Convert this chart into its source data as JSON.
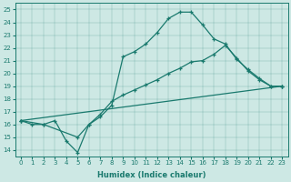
{
  "xlabel": "Humidex (Indice chaleur)",
  "xlim": [
    -0.5,
    23.5
  ],
  "ylim": [
    13.5,
    25.5
  ],
  "xticks": [
    0,
    1,
    2,
    3,
    4,
    5,
    6,
    7,
    8,
    9,
    10,
    11,
    12,
    13,
    14,
    15,
    16,
    17,
    18,
    19,
    20,
    21,
    22,
    23
  ],
  "yticks": [
    14,
    15,
    16,
    17,
    18,
    19,
    20,
    21,
    22,
    23,
    24,
    25
  ],
  "line_color": "#1a7a6e",
  "bg_color": "#cde8e4",
  "line1_x": [
    0,
    1,
    2,
    3,
    4,
    5,
    6,
    7,
    8,
    9,
    10,
    11,
    12,
    13,
    14,
    15,
    16,
    17,
    18,
    19,
    20,
    21,
    22,
    23
  ],
  "line1_y": [
    16.3,
    16.0,
    16.0,
    16.3,
    14.7,
    13.8,
    16.0,
    16.6,
    17.5,
    21.3,
    21.7,
    22.3,
    23.2,
    24.3,
    24.8,
    24.8,
    23.8,
    22.7,
    22.3,
    21.1,
    20.3,
    19.6,
    19.0,
    19.0
  ],
  "line2_x": [
    0,
    2,
    5,
    6,
    7,
    8,
    9,
    10,
    11,
    12,
    13,
    14,
    15,
    16,
    17,
    18,
    19,
    20,
    21,
    22,
    23
  ],
  "line2_y": [
    16.3,
    16.0,
    15.0,
    16.0,
    16.8,
    17.8,
    18.3,
    18.7,
    19.1,
    19.5,
    20.0,
    20.4,
    20.9,
    21.0,
    21.5,
    22.2,
    21.2,
    20.2,
    19.5,
    19.0,
    19.0
  ],
  "line3_x": [
    0,
    23
  ],
  "line3_y": [
    16.3,
    19.0
  ]
}
